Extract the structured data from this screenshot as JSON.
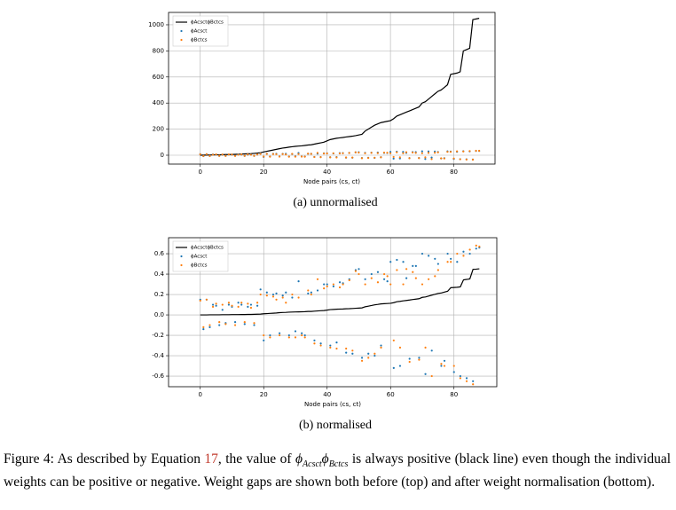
{
  "chart_data": [
    {
      "type": "line",
      "xlabel": "Node pairs (cs, ct)",
      "subcaption": "(a) unnormalised",
      "grid": true,
      "legend": "upper left",
      "xlim": [
        -10,
        93
      ],
      "xticks": [
        0,
        20,
        40,
        60,
        80
      ],
      "ylim": [
        -68,
        1095
      ],
      "yticks": [
        0,
        200,
        400,
        600,
        800,
        1000
      ],
      "x": [
        0,
        1,
        2,
        3,
        4,
        5,
        6,
        7,
        8,
        9,
        10,
        11,
        12,
        13,
        14,
        15,
        16,
        17,
        18,
        19,
        20,
        21,
        22,
        23,
        24,
        25,
        26,
        27,
        28,
        29,
        30,
        31,
        32,
        33,
        34,
        35,
        36,
        37,
        38,
        39,
        40,
        41,
        42,
        43,
        44,
        45,
        46,
        47,
        48,
        49,
        50,
        51,
        52,
        53,
        54,
        55,
        56,
        57,
        58,
        59,
        60,
        61,
        62,
        63,
        64,
        65,
        66,
        67,
        68,
        69,
        70,
        71,
        72,
        73,
        74,
        75,
        76,
        77,
        78,
        79,
        80,
        81,
        82,
        83,
        84,
        85,
        86,
        87,
        88
      ],
      "series": [
        {
          "name": "ϕAcsctϕBctcs",
          "style": "line",
          "color": "#000000",
          "values": [
            0,
            1,
            1,
            2,
            2,
            3,
            3,
            4,
            5,
            5,
            6,
            7,
            8,
            9,
            10,
            11,
            12,
            14,
            16,
            19,
            25,
            30,
            35,
            40,
            45,
            50,
            55,
            58,
            62,
            65,
            68,
            70,
            72,
            75,
            78,
            80,
            85,
            90,
            95,
            100,
            110,
            120,
            125,
            130,
            133,
            136,
            140,
            143,
            146,
            150,
            155,
            160,
            185,
            200,
            215,
            230,
            240,
            250,
            255,
            260,
            265,
            280,
            300,
            310,
            320,
            330,
            340,
            350,
            360,
            370,
            400,
            410,
            430,
            450,
            470,
            490,
            500,
            520,
            540,
            620,
            625,
            630,
            640,
            800,
            810,
            820,
            1040,
            1045,
            1050
          ]
        },
        {
          "name": "ϕAcsct",
          "style": "marker",
          "color": "#1f77b4",
          "values": [
            8,
            -7,
            8,
            -6,
            5,
            5,
            -5,
            3,
            -4,
            5,
            4,
            -4,
            6,
            5,
            -5,
            4,
            5,
            -5,
            5,
            13,
            -13,
            11,
            -10,
            10,
            11,
            -9,
            10,
            11,
            -10,
            9,
            -8,
            17,
            -9,
            -10,
            11,
            11,
            -13,
            12,
            -14,
            15,
            15,
            -15,
            14,
            -14,
            16,
            16,
            -19,
            18,
            -19,
            22,
            23,
            -21,
            18,
            -19,
            20,
            -20,
            21,
            -15,
            18,
            17,
            26,
            -26,
            27,
            -25,
            26,
            18,
            -22,
            24,
            24,
            -21,
            30,
            -29,
            29,
            -18,
            28,
            25,
            -25,
            -23,
            30,
            28,
            -28,
            26,
            -30,
            31,
            -31,
            30,
            -33,
            33,
            33
          ]
        },
        {
          "name": "ϕBctcs",
          "style": "marker",
          "color": "#ff7f0e",
          "values": [
            7,
            -6,
            8,
            -5,
            4,
            6,
            -4,
            5,
            -5,
            6,
            5,
            -5,
            4,
            6,
            -4,
            6,
            4,
            -4,
            6,
            10,
            -10,
            10,
            -11,
            9,
            8,
            -10,
            9,
            6,
            -11,
            10,
            -11,
            9,
            -10,
            -11,
            12,
            10,
            -14,
            18,
            -15,
            13,
            14,
            -16,
            15,
            -17,
            14,
            15,
            -17,
            17,
            -18,
            22,
            20,
            -23,
            15,
            -21,
            18,
            -19,
            16,
            -16,
            20,
            19,
            15,
            -13,
            22,
            -16,
            15,
            23,
            -23,
            21,
            18,
            -22,
            15,
            -16,
            18,
            -30,
            19,
            22,
            -24,
            -25,
            26,
            26,
            -25,
            30,
            -31,
            29,
            -33,
            32,
            -34,
            34,
            34
          ]
        }
      ]
    },
    {
      "type": "line",
      "xlabel": "Node pairs (cs, ct)",
      "subcaption": "(b) normalised",
      "grid": true,
      "legend": "upper left",
      "xlim": [
        -10,
        93.5
      ],
      "xticks": [
        0,
        20,
        40,
        60,
        80
      ],
      "ylim": [
        -0.704,
        0.757
      ],
      "yticks": [
        -0.6,
        -0.4,
        -0.2,
        {
          "value": 0,
          "label": "0.0"
        },
        0.2,
        0.4,
        0.6
      ],
      "x": [
        0,
        1,
        2,
        3,
        4,
        5,
        6,
        7,
        8,
        9,
        10,
        11,
        12,
        13,
        14,
        15,
        16,
        17,
        18,
        19,
        20,
        21,
        22,
        23,
        24,
        25,
        26,
        27,
        28,
        29,
        30,
        31,
        32,
        33,
        34,
        35,
        36,
        37,
        38,
        39,
        40,
        41,
        42,
        43,
        44,
        45,
        46,
        47,
        48,
        49,
        50,
        51,
        52,
        53,
        54,
        55,
        56,
        57,
        58,
        59,
        60,
        61,
        62,
        63,
        64,
        65,
        66,
        67,
        68,
        69,
        70,
        71,
        72,
        73,
        74,
        75,
        76,
        77,
        78,
        79,
        80,
        81,
        82,
        83,
        84,
        85,
        86,
        87,
        88
      ],
      "series": [
        {
          "name": "ϕAcsctϕBctcs",
          "style": "line",
          "color": "#000000",
          "values": [
            0,
            0,
            0,
            0.001,
            0.001,
            0.001,
            0.001,
            0.002,
            0.002,
            0.002,
            0.003,
            0.003,
            0.003,
            0.004,
            0.004,
            0.005,
            0.005,
            0.006,
            0.007,
            0.008,
            0.011,
            0.013,
            0.015,
            0.017,
            0.019,
            0.022,
            0.024,
            0.025,
            0.027,
            0.028,
            0.029,
            0.03,
            0.031,
            0.032,
            0.034,
            0.034,
            0.037,
            0.039,
            0.041,
            0.043,
            0.047,
            0.052,
            0.054,
            0.056,
            0.057,
            0.058,
            0.06,
            0.061,
            0.063,
            0.065,
            0.067,
            0.069,
            0.08,
            0.086,
            0.092,
            0.099,
            0.103,
            0.108,
            0.11,
            0.112,
            0.114,
            0.12,
            0.129,
            0.133,
            0.138,
            0.142,
            0.146,
            0.151,
            0.155,
            0.159,
            0.172,
            0.176,
            0.185,
            0.194,
            0.202,
            0.211,
            0.215,
            0.224,
            0.232,
            0.267,
            0.269,
            0.271,
            0.275,
            0.344,
            0.348,
            0.353,
            0.447,
            0.449,
            0.452
          ]
        },
        {
          "name": "ϕAcsct",
          "style": "marker",
          "color": "#1f77b4",
          "values": [
            0.15,
            -0.14,
            0.15,
            -0.12,
            0.1,
            0.09,
            -0.1,
            0.05,
            -0.08,
            0.1,
            0.08,
            -0.07,
            0.12,
            0.1,
            -0.09,
            0.08,
            0.1,
            -0.1,
            0.09,
            0.25,
            -0.25,
            0.22,
            -0.2,
            0.2,
            0.21,
            -0.18,
            0.19,
            0.22,
            -0.2,
            0.17,
            -0.16,
            0.33,
            -0.18,
            -0.2,
            0.21,
            0.22,
            -0.25,
            0.24,
            -0.28,
            0.3,
            0.3,
            -0.3,
            0.28,
            -0.27,
            0.32,
            0.31,
            -0.37,
            0.35,
            -0.38,
            0.44,
            0.45,
            -0.42,
            0.35,
            -0.38,
            0.4,
            -0.4,
            0.42,
            -0.3,
            0.35,
            0.33,
            0.52,
            -0.52,
            0.54,
            -0.5,
            0.52,
            0.36,
            -0.43,
            0.48,
            0.48,
            -0.42,
            0.6,
            -0.58,
            0.58,
            -0.35,
            0.55,
            0.5,
            -0.5,
            -0.45,
            0.6,
            0.55,
            -0.56,
            0.52,
            -0.6,
            0.62,
            -0.62,
            0.6,
            -0.65,
            0.65,
            0.66
          ]
        },
        {
          "name": "ϕBctcs",
          "style": "marker",
          "color": "#ff7f0e",
          "values": [
            0.14,
            -0.12,
            0.15,
            -0.1,
            0.08,
            0.11,
            -0.07,
            0.1,
            -0.09,
            0.12,
            0.09,
            -0.1,
            0.08,
            0.12,
            -0.07,
            0.11,
            0.07,
            -0.08,
            0.12,
            0.2,
            -0.2,
            0.19,
            -0.22,
            0.18,
            0.15,
            -0.2,
            0.17,
            0.12,
            -0.22,
            0.2,
            -0.22,
            0.17,
            -0.2,
            -0.22,
            0.24,
            0.2,
            -0.28,
            0.35,
            -0.3,
            0.26,
            0.28,
            -0.32,
            0.3,
            -0.33,
            0.27,
            0.3,
            -0.33,
            0.34,
            -0.35,
            0.43,
            0.4,
            -0.45,
            0.3,
            -0.42,
            0.36,
            -0.38,
            0.32,
            -0.32,
            0.4,
            0.38,
            0.3,
            -0.25,
            0.44,
            -0.32,
            0.3,
            0.45,
            -0.46,
            0.42,
            0.36,
            -0.44,
            0.3,
            -0.32,
            0.35,
            -0.6,
            0.38,
            0.44,
            -0.48,
            -0.5,
            0.52,
            0.52,
            -0.5,
            0.6,
            -0.62,
            0.58,
            -0.65,
            0.64,
            -0.68,
            0.68,
            0.67
          ]
        }
      ]
    }
  ],
  "caption": {
    "label": "Figure 4:",
    "before": "As described by Equation",
    "ref": "17",
    "mid": ", the value of",
    "math": [
      "ϕ",
      "Acsct",
      "ϕ",
      "Bctcs"
    ],
    "after": "is always positive (black line) even though the individual weights can be positive or negative.  Weight gaps are shown both before (top) and after weight normalisation (bottom)."
  }
}
